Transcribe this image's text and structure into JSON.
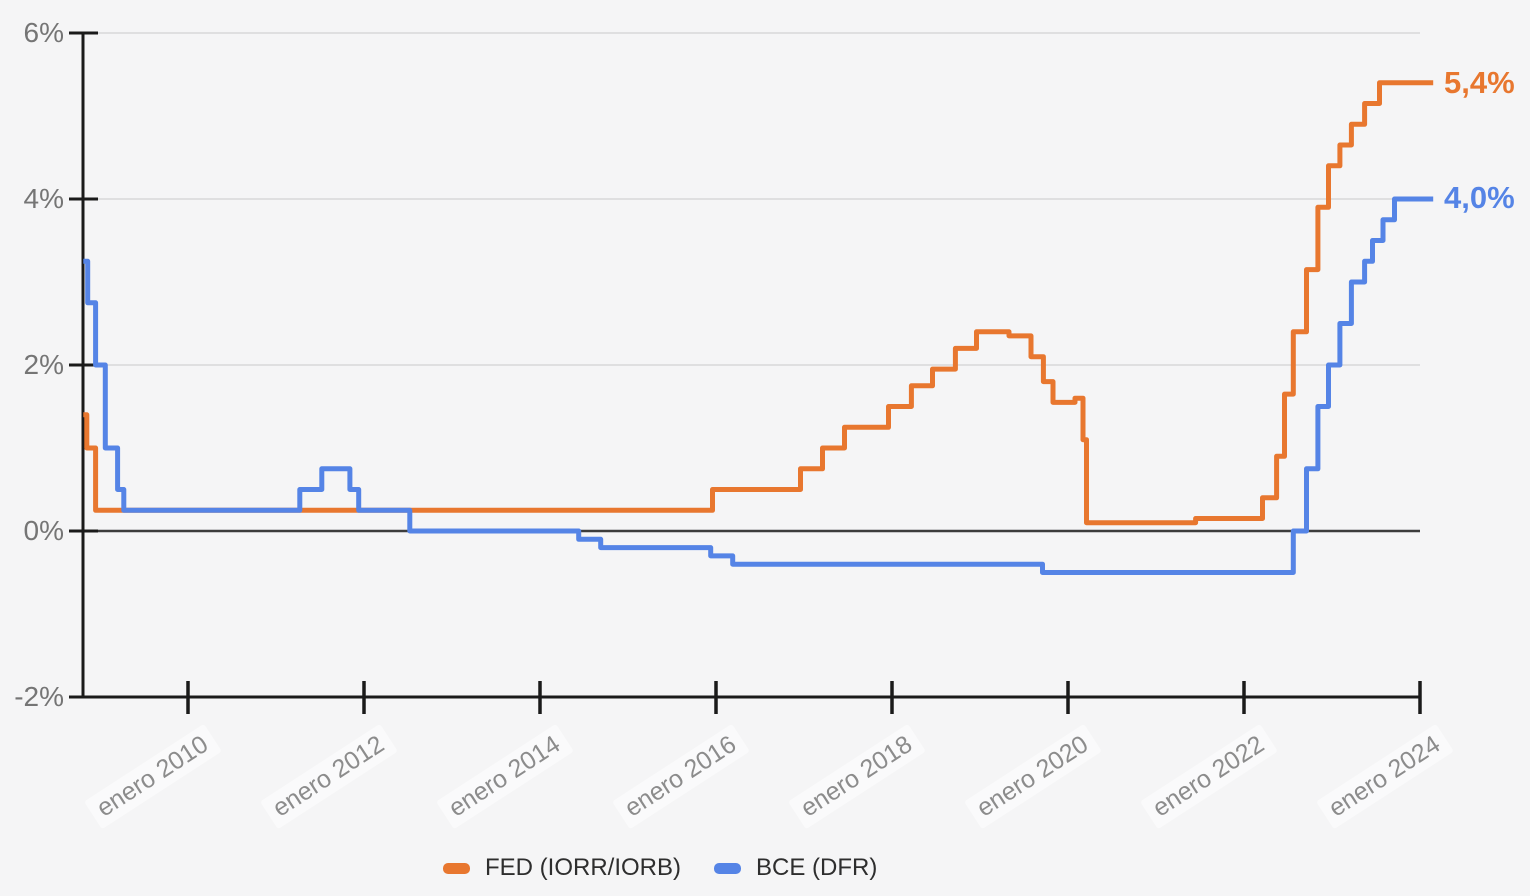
{
  "chart_data": {
    "type": "line",
    "step": true,
    "title": "",
    "xlabel": "",
    "ylabel": "",
    "grid": true,
    "legend_position": "bottom",
    "xlim": [
      2008.81,
      2024.15
    ],
    "ylim": [
      -2,
      6
    ],
    "y_axis": {
      "ticks": [
        {
          "value": 6,
          "label": "6%"
        },
        {
          "value": 4,
          "label": "4%"
        },
        {
          "value": 2,
          "label": "2%"
        },
        {
          "value": 0,
          "label": "0%"
        },
        {
          "value": -2,
          "label": "-2%"
        }
      ]
    },
    "x_axis": {
      "ticks": [
        {
          "year": 2010,
          "label": "enero 2010"
        },
        {
          "year": 2012,
          "label": "enero 2012"
        },
        {
          "year": 2014,
          "label": "enero 2014"
        },
        {
          "year": 2016,
          "label": "enero 2016"
        },
        {
          "year": 2018,
          "label": "enero 2018"
        },
        {
          "year": 2020,
          "label": "enero 2020"
        },
        {
          "year": 2022,
          "label": "enero 2022"
        },
        {
          "year": 2024,
          "label": "enero 2024"
        }
      ]
    },
    "series": [
      {
        "name": "FED (IORR/IORB)",
        "color": "#e8772f",
        "end_label": "5,4%",
        "end_value": 5.4,
        "points": [
          [
            2008.81,
            1.4
          ],
          [
            2008.85,
            1.0
          ],
          [
            2008.95,
            0.25
          ],
          [
            2015.96,
            0.5
          ],
          [
            2016.96,
            0.75
          ],
          [
            2017.21,
            1.0
          ],
          [
            2017.46,
            1.25
          ],
          [
            2017.96,
            1.5
          ],
          [
            2018.22,
            1.75
          ],
          [
            2018.46,
            1.95
          ],
          [
            2018.72,
            2.2
          ],
          [
            2018.96,
            2.4
          ],
          [
            2019.33,
            2.35
          ],
          [
            2019.58,
            2.1
          ],
          [
            2019.72,
            1.8
          ],
          [
            2019.83,
            1.55
          ],
          [
            2020.08,
            1.6
          ],
          [
            2020.17,
            1.1
          ],
          [
            2020.21,
            0.1
          ],
          [
            2021.45,
            0.15
          ],
          [
            2022.21,
            0.4
          ],
          [
            2022.37,
            0.9
          ],
          [
            2022.46,
            1.65
          ],
          [
            2022.56,
            2.4
          ],
          [
            2022.71,
            3.15
          ],
          [
            2022.84,
            3.9
          ],
          [
            2022.96,
            4.4
          ],
          [
            2023.09,
            4.65
          ],
          [
            2023.22,
            4.9
          ],
          [
            2023.37,
            5.15
          ],
          [
            2023.54,
            5.4
          ]
        ]
      },
      {
        "name": "BCE (DFR)",
        "color": "#5584e6",
        "end_label": "4,0%",
        "end_value": 4.0,
        "points": [
          [
            2008.81,
            3.25
          ],
          [
            2008.86,
            2.75
          ],
          [
            2008.95,
            2.0
          ],
          [
            2009.06,
            1.0
          ],
          [
            2009.2,
            0.5
          ],
          [
            2009.27,
            0.25
          ],
          [
            2011.27,
            0.5
          ],
          [
            2011.52,
            0.75
          ],
          [
            2011.84,
            0.5
          ],
          [
            2011.94,
            0.25
          ],
          [
            2012.52,
            0.0
          ],
          [
            2014.44,
            -0.1
          ],
          [
            2014.69,
            -0.2
          ],
          [
            2015.94,
            -0.3
          ],
          [
            2016.19,
            -0.4
          ],
          [
            2019.71,
            -0.5
          ],
          [
            2022.56,
            0.0
          ],
          [
            2022.71,
            0.75
          ],
          [
            2022.84,
            1.5
          ],
          [
            2022.96,
            2.0
          ],
          [
            2023.09,
            2.5
          ],
          [
            2023.22,
            3.0
          ],
          [
            2023.37,
            3.25
          ],
          [
            2023.46,
            3.5
          ],
          [
            2023.58,
            3.75
          ],
          [
            2023.71,
            4.0
          ]
        ]
      }
    ],
    "colors": {
      "background": "#f5f5f6",
      "gridline": "#d8d8d8",
      "zero_line": "#3c3c3c",
      "axis": "#1a1a1a",
      "y_tick_text": "#757575",
      "x_tick_text": "#8c8c8c",
      "legend_text": "#2e2e2e"
    }
  }
}
